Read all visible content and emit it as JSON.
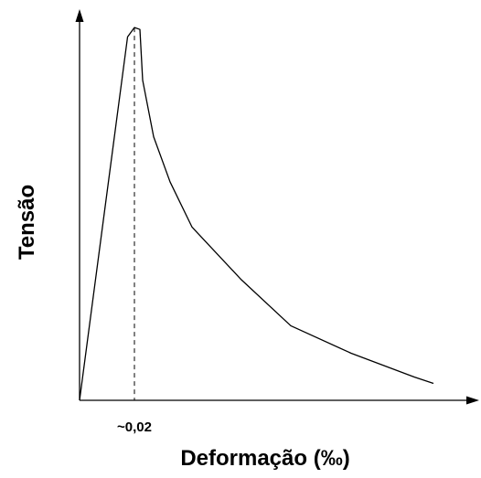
{
  "chart_data": {
    "type": "line",
    "title": "",
    "xlabel": "Deformação (‰)",
    "ylabel": "Tensão",
    "xlim": [
      0,
      0.13
    ],
    "ylim": [
      0,
      1.0
    ],
    "x_ticks": [
      {
        "value": 0.02,
        "label": "~0,02"
      }
    ],
    "grid": false,
    "legend": "none",
    "series": [
      {
        "x": [
          0,
          0.0175,
          0.02,
          0.022,
          0.023,
          0.027,
          0.033,
          0.041,
          0.059,
          0.077,
          0.099,
          0.122,
          0.129
        ],
        "y": [
          0,
          0.965,
          0.99,
          0.985,
          0.85,
          0.7,
          0.58,
          0.46,
          0.32,
          0.198,
          0.125,
          0.062,
          0.045
        ]
      }
    ],
    "reference_lines": [
      {
        "orientation": "vertical",
        "x": 0.02,
        "style": "dashed"
      }
    ]
  }
}
